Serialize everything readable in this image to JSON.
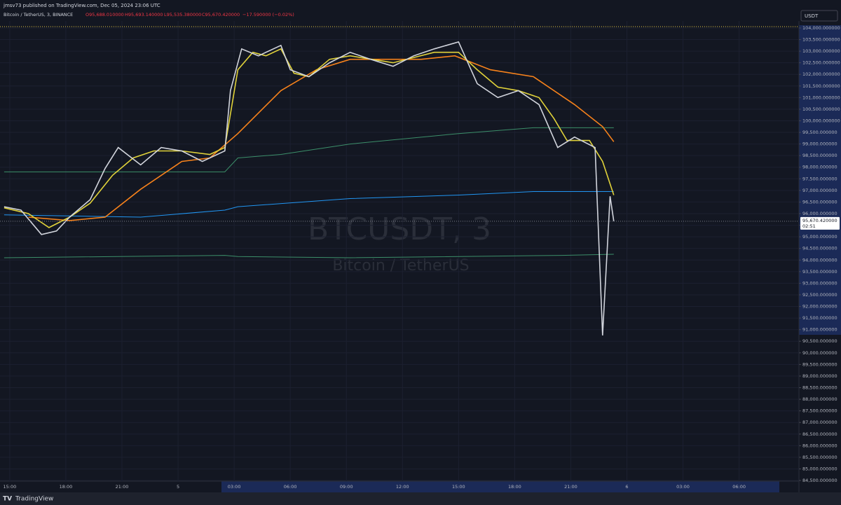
{
  "header": {
    "published": "jmsv73 published on TradingView.com, Dec 05, 2024 23:06 UTC",
    "symbol": "Bitcoin / TetherUS, 3, BINANCE",
    "open": "O95,688.010000",
    "high": "H95,693.140000",
    "low": "L95,535.380000",
    "close": "C95,670.420000",
    "change": "−17.590000 (−0.02%)",
    "currency": "USDT"
  },
  "chart_data": {
    "type": "line",
    "watermark": "BTCUSDT, 3",
    "watermark_sub": "Bitcoin / TetherUS",
    "last_price_label": "95,670.420000",
    "countdown": "02:51",
    "last_price": 95670.42,
    "xlim": [
      -0.52,
      42.2
    ],
    "xticks": [
      {
        "value": 0,
        "label": "15:00"
      },
      {
        "value": 3,
        "label": "18:00"
      },
      {
        "value": 6,
        "label": "21:00"
      },
      {
        "value": 9,
        "label": "5"
      },
      {
        "value": 12,
        "label": "03:00"
      },
      {
        "value": 15,
        "label": "06:00"
      },
      {
        "value": 18,
        "label": "09:00"
      },
      {
        "value": 21,
        "label": "12:00"
      },
      {
        "value": 24,
        "label": "15:00"
      },
      {
        "value": 27,
        "label": "18:00"
      },
      {
        "value": 30,
        "label": "21:00"
      },
      {
        "value": 33,
        "label": "6"
      },
      {
        "value": 36,
        "label": "03:00"
      },
      {
        "value": 39,
        "label": "06:00"
      }
    ],
    "ylim": [
      84380,
      104300
    ],
    "yticks": [
      {
        "value": 104000,
        "label": "104,000.000000"
      },
      {
        "value": 103500,
        "label": "103,500.000000"
      },
      {
        "value": 103000,
        "label": "103,000.000000"
      },
      {
        "value": 102500,
        "label": "102,500.000000"
      },
      {
        "value": 102000,
        "label": "102,000.000000"
      },
      {
        "value": 101500,
        "label": "101,500.000000"
      },
      {
        "value": 101000,
        "label": "101,000.000000"
      },
      {
        "value": 100500,
        "label": "100,500.000000"
      },
      {
        "value": 100000,
        "label": "100,000.000000"
      },
      {
        "value": 99500,
        "label": "99,500.000000"
      },
      {
        "value": 99000,
        "label": "99,000.000000"
      },
      {
        "value": 98500,
        "label": "98,500.000000"
      },
      {
        "value": 98000,
        "label": "98,000.000000"
      },
      {
        "value": 97500,
        "label": "97,500.000000"
      },
      {
        "value": 97000,
        "label": "97,000.000000"
      },
      {
        "value": 96500,
        "label": "96,500.000000"
      },
      {
        "value": 96000,
        "label": "96,000.000000"
      },
      {
        "value": 95500,
        "label": "95,500.000000"
      },
      {
        "value": 95000,
        "label": "95,000.000000"
      },
      {
        "value": 94500,
        "label": "94,500.000000"
      },
      {
        "value": 94000,
        "label": "94,000.000000"
      },
      {
        "value": 93500,
        "label": "93,500.000000"
      },
      {
        "value": 93000,
        "label": "93,000.000000"
      },
      {
        "value": 92500,
        "label": "92,500.000000"
      },
      {
        "value": 92000,
        "label": "92,000.000000"
      },
      {
        "value": 91500,
        "label": "91,500.000000"
      },
      {
        "value": 91000,
        "label": "91,000.000000"
      },
      {
        "value": 90500,
        "label": "90,500.000000"
      },
      {
        "value": 90000,
        "label": "90,000.000000"
      },
      {
        "value": 89500,
        "label": "89,500.000000"
      },
      {
        "value": 89000,
        "label": "89,000.000000"
      },
      {
        "value": 88500,
        "label": "88,500.000000"
      },
      {
        "value": 88000,
        "label": "88,000.000000"
      },
      {
        "value": 87500,
        "label": "87,500.000000"
      },
      {
        "value": 87000,
        "label": "87,000.000000"
      },
      {
        "value": 86500,
        "label": "86,500.000000"
      },
      {
        "value": 86000,
        "label": "86,000.000000"
      },
      {
        "value": 85500,
        "label": "85,500.000000"
      },
      {
        "value": 85000,
        "label": "85,000.000000"
      },
      {
        "value": 84500,
        "label": "84,500.000000"
      }
    ],
    "grid": true,
    "series": [
      {
        "color": "#3c8f6a",
        "x": [
          -0.3,
          11.5,
          12.2,
          14.5,
          18.2,
          24.0,
          28.0,
          32.3
        ],
        "values": [
          97800,
          97800,
          98400,
          98550,
          99000,
          99450,
          99700,
          99700
        ]
      },
      {
        "color": "#3c8f6a",
        "x": [
          -0.3,
          11.5,
          12.2,
          18.2,
          29.5,
          32.3
        ],
        "values": [
          94100,
          94200,
          94150,
          94100,
          94200,
          94250
        ]
      },
      {
        "color": "#2196f3",
        "x": [
          -0.3,
          7.0,
          11.5,
          12.2,
          18.2,
          24.0,
          28.0,
          32.3
        ],
        "values": [
          95950,
          95850,
          96150,
          96300,
          96650,
          96800,
          96950,
          96950
        ]
      },
      {
        "color": "#f7821b",
        "x": [
          1.0,
          3.2,
          5.1,
          7.0,
          9.2,
          10.7,
          12.2,
          14.5,
          16.4,
          18.2,
          22.0,
          23.8,
          25.7,
          28.0,
          30.2,
          31.7,
          32.3
        ],
        "values": [
          95850,
          95700,
          95850,
          97050,
          98250,
          98400,
          99450,
          101300,
          102200,
          102650,
          102650,
          102800,
          102200,
          101900,
          100700,
          99750,
          99100
        ]
      },
      {
        "color": "#e0d23a",
        "x": [
          -0.3,
          1.0,
          2.1,
          3.2,
          4.3,
          5.5,
          6.6,
          7.7,
          9.2,
          10.7,
          11.5,
          12.2,
          13.0,
          13.7,
          14.5,
          15.2,
          16.0,
          17.1,
          18.2,
          20.5,
          22.7,
          24.0,
          25.0,
          26.1,
          27.2,
          28.3,
          29.1,
          29.8,
          31.0,
          31.7,
          32.3
        ],
        "values": [
          96250,
          96000,
          95400,
          95850,
          96450,
          97650,
          98400,
          98700,
          98700,
          98550,
          98850,
          102200,
          102950,
          102800,
          103100,
          102050,
          101900,
          102650,
          102800,
          102500,
          102950,
          102950,
          102200,
          101450,
          101300,
          101000,
          100100,
          99150,
          99150,
          98250,
          96800
        ]
      },
      {
        "color": "#d1d4dc",
        "x": [
          -0.3,
          0.6,
          1.7,
          2.5,
          3.2,
          4.3,
          5.1,
          5.8,
          7.0,
          8.1,
          9.2,
          10.3,
          11.5,
          11.8,
          12.4,
          13.3,
          14.5,
          15.0,
          16.0,
          17.1,
          18.2,
          19.3,
          20.5,
          21.6,
          22.7,
          24.0,
          25.0,
          26.1,
          27.2,
          28.3,
          29.3,
          30.2,
          31.3,
          31.7,
          32.1,
          32.3
        ],
        "values": [
          96300,
          96150,
          95100,
          95250,
          95850,
          96600,
          97950,
          98850,
          98100,
          98850,
          98700,
          98250,
          98700,
          101300,
          103100,
          102800,
          103250,
          102200,
          101900,
          102500,
          102950,
          102650,
          102350,
          102800,
          103100,
          103400,
          101600,
          101000,
          101300,
          100700,
          98850,
          99300,
          98850,
          90750,
          96750,
          95670.42
        ]
      }
    ]
  }
}
